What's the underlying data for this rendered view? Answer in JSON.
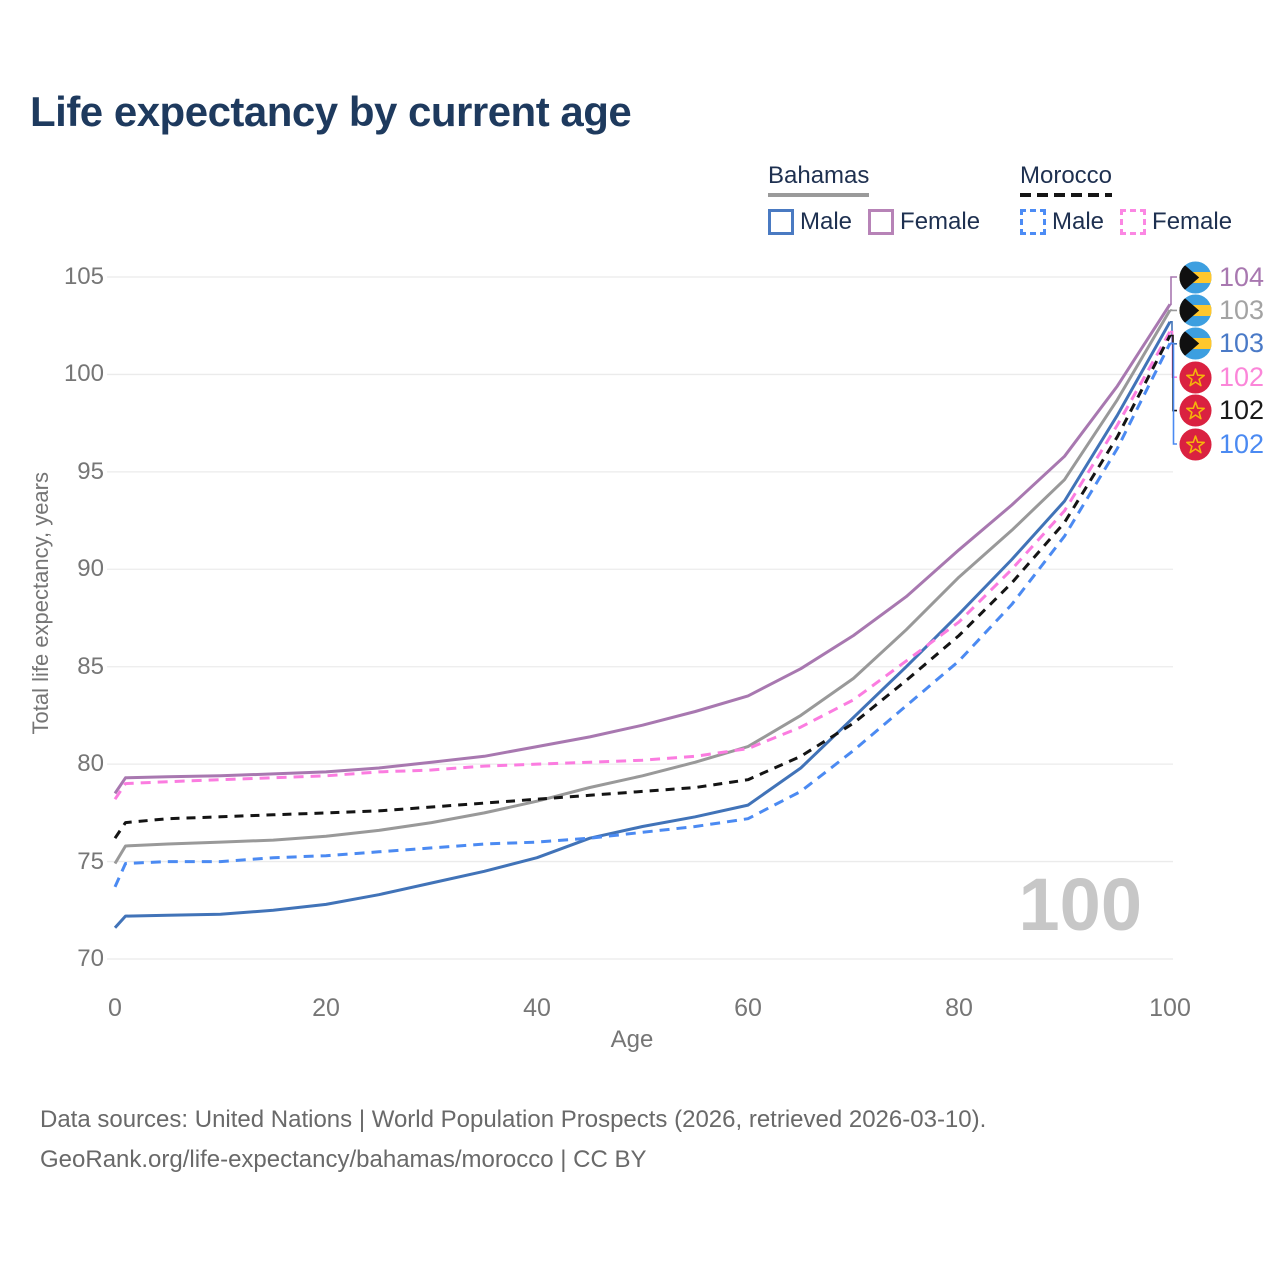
{
  "colors": {
    "title_text": "#1e3a5e",
    "legend_text": "#1e3050",
    "axis_text": "#757575",
    "tick_text": "#767676",
    "grid": "#ebebeb",
    "watermark": "#c7c7c7",
    "footer_text": "#696969"
  },
  "legend": {
    "bahamas": {
      "name": "Bahamas",
      "male_label": "Male",
      "female_label": "Female",
      "line_style": "solid",
      "keyline_color": "#9a9a9a",
      "male_color": "#4a7ac2",
      "female_color": "#b783b7"
    },
    "morocco": {
      "name": "Morocco",
      "male_label": "Male",
      "female_label": "Female",
      "line_style": "dashed",
      "keyline_color": "#151515",
      "male_color": "#4d8cf5",
      "female_color": "#fb87e3"
    }
  },
  "watermark_age": "100",
  "footer": {
    "line1": "Data sources: United Nations | World Population Prospects (2026, retrieved 2026-03-10).",
    "line2": "GeoRank.org/life-expectancy/bahamas/morocco | CC BY"
  },
  "flags": {
    "bahamas": {
      "band": "#3d9fe0",
      "gold": "#ffc72c",
      "chevron": "#101010"
    },
    "morocco": {
      "field": "#da2140",
      "star": "#f5b50a"
    }
  },
  "chart_data": {
    "type": "line",
    "title": "Life expectancy by current age",
    "xlabel": "Age",
    "ylabel": "Total life expectancy, years",
    "xlim": [
      0,
      100
    ],
    "ylim": [
      70,
      105
    ],
    "x_ticks": [
      0,
      20,
      40,
      60,
      80,
      100
    ],
    "y_ticks": [
      70,
      75,
      80,
      85,
      90,
      95,
      100,
      105
    ],
    "grid": "horizontal",
    "legend_position": "top-right",
    "ages": [
      0,
      1,
      5,
      10,
      15,
      20,
      25,
      30,
      35,
      40,
      45,
      50,
      55,
      60,
      65,
      70,
      75,
      80,
      85,
      90,
      95,
      100
    ],
    "series": [
      {
        "id": "bahamas-female",
        "country": "Bahamas",
        "sex": "Female",
        "color": "#a878b0",
        "dash": null,
        "flag": "bahamas",
        "end_label": "104",
        "end_label_color": "#a878b0",
        "values": [
          78.5,
          79.3,
          79.35,
          79.4,
          79.5,
          79.6,
          79.8,
          80.1,
          80.4,
          80.9,
          81.4,
          82.0,
          82.7,
          83.5,
          84.9,
          86.6,
          88.6,
          91.0,
          93.3,
          95.8,
          99.4,
          103.6
        ]
      },
      {
        "id": "bahamas-both",
        "country": "Bahamas",
        "sex": "Both sexes",
        "color": "#999999",
        "dash": null,
        "flag": "bahamas",
        "end_label": "103",
        "end_label_color": "#a3a3a3",
        "values": [
          74.9,
          75.8,
          75.9,
          76.0,
          76.1,
          76.3,
          76.6,
          77.0,
          77.5,
          78.1,
          78.8,
          79.4,
          80.1,
          80.9,
          82.5,
          84.4,
          86.9,
          89.6,
          92.0,
          94.6,
          98.7,
          103.3
        ]
      },
      {
        "id": "bahamas-male",
        "country": "Bahamas",
        "sex": "Male",
        "color": "#4173b8",
        "dash": null,
        "flag": "bahamas",
        "end_label": "103",
        "end_label_color": "#4a7ac7",
        "values": [
          71.6,
          72.2,
          72.25,
          72.3,
          72.5,
          72.8,
          73.3,
          73.9,
          74.5,
          75.2,
          76.2,
          76.8,
          77.3,
          77.9,
          79.8,
          82.4,
          85.0,
          87.7,
          90.5,
          93.5,
          97.9,
          102.7
        ]
      },
      {
        "id": "morocco-female",
        "country": "Morocco",
        "sex": "Female",
        "color": "#fb7ce0",
        "dash": "10 7",
        "flag": "morocco",
        "end_label": "102",
        "end_label_color": "#fb86d9",
        "values": [
          78.2,
          79.0,
          79.1,
          79.2,
          79.3,
          79.4,
          79.6,
          79.7,
          79.9,
          80.0,
          80.1,
          80.2,
          80.4,
          80.8,
          81.9,
          83.3,
          85.3,
          87.3,
          90.0,
          93.0,
          97.4,
          102.2
        ]
      },
      {
        "id": "morocco-both",
        "country": "Morocco",
        "sex": "Both sexes",
        "color": "#141414",
        "dash": "9 7",
        "flag": "morocco",
        "end_label": "102",
        "end_label_color": "#1a1a1a",
        "values": [
          76.2,
          77.0,
          77.2,
          77.3,
          77.4,
          77.5,
          77.6,
          77.8,
          78.0,
          78.2,
          78.4,
          78.6,
          78.8,
          79.2,
          80.4,
          82.1,
          84.3,
          86.6,
          89.3,
          92.4,
          96.8,
          102.0
        ]
      },
      {
        "id": "morocco-male",
        "country": "Morocco",
        "sex": "Male",
        "color": "#4b8af2",
        "dash": "10 7",
        "flag": "morocco",
        "end_label": "102",
        "end_label_color": "#4b8af2",
        "values": [
          73.7,
          74.9,
          75.0,
          75.0,
          75.2,
          75.3,
          75.5,
          75.7,
          75.9,
          76.0,
          76.2,
          76.5,
          76.8,
          77.2,
          78.6,
          80.7,
          83.0,
          85.3,
          88.2,
          91.7,
          96.2,
          101.6
        ]
      }
    ]
  }
}
